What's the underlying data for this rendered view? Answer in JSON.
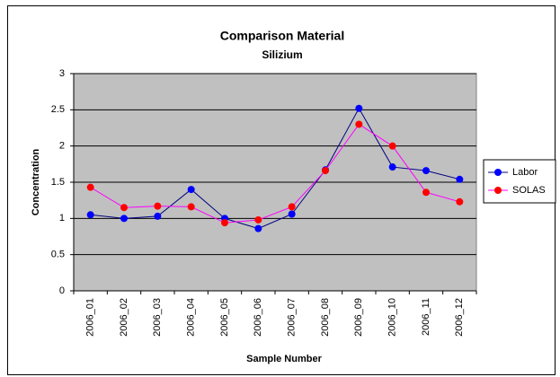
{
  "chart_data": {
    "type": "line",
    "title": "Comparison Material",
    "subtitle": "Silizium",
    "x_label": "Sample Number",
    "y_label": "Concentration",
    "categories": [
      "2006_01",
      "2006_02",
      "2006_03",
      "2006_04",
      "2006_05",
      "2006_06",
      "2006_07",
      "2006_08",
      "2006_09",
      "2006_10",
      "2006_11",
      "2006_12"
    ],
    "series": [
      {
        "name": "Labor",
        "color": "#0000ff",
        "line_color": "#000080",
        "values": [
          1.05,
          1.0,
          1.03,
          1.4,
          1.0,
          0.86,
          1.06,
          1.67,
          2.52,
          1.71,
          1.66,
          1.54
        ]
      },
      {
        "name": "SOLAS",
        "color": "#ff0000",
        "line_color": "#ff00ff",
        "values": [
          1.43,
          1.15,
          1.17,
          1.16,
          0.94,
          0.98,
          1.16,
          1.66,
          2.3,
          2.0,
          1.36,
          1.23
        ]
      }
    ],
    "ylim": [
      0,
      3
    ],
    "yticks": [
      0,
      0.5,
      1,
      1.5,
      2,
      2.5,
      3
    ],
    "grid": true,
    "plot_background": "#c0c0c0",
    "legend": "right"
  }
}
